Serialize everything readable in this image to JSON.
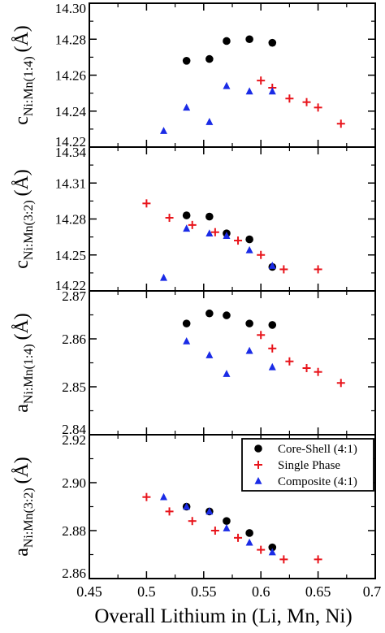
{
  "x_axis": {
    "label": "Overall Lithium in (Li, Mn, Ni)",
    "range": [
      0.45,
      0.7
    ],
    "ticks": [
      "0.45",
      "0.5",
      "0.55",
      "0.6",
      "0.65",
      "0.7"
    ]
  },
  "chart_data": [
    {
      "type": "scatter",
      "ylabel_main": "c",
      "ylabel_sub": "Ni:Mn(1:4)",
      "ylabel_unit": "(Å)",
      "ylim": [
        14.22,
        14.3
      ],
      "yticks": [
        "14.22",
        "14.24",
        "14.26",
        "14.28",
        "14.30"
      ],
      "series": [
        {
          "name": "Core-Shell (4:1)",
          "x": [
            0.535,
            0.555,
            0.57,
            0.59,
            0.61
          ],
          "y": [
            14.268,
            14.269,
            14.279,
            14.28,
            14.278
          ]
        },
        {
          "name": "Single Phase",
          "x": [
            0.6,
            0.61,
            0.625,
            0.64,
            0.65,
            0.67
          ],
          "y": [
            14.257,
            14.253,
            14.247,
            14.245,
            14.242,
            14.233
          ]
        },
        {
          "name": "Composite (4:1)",
          "x": [
            0.515,
            0.535,
            0.555,
            0.57,
            0.59,
            0.61
          ],
          "y": [
            14.229,
            14.242,
            14.234,
            14.254,
            14.251,
            14.251
          ]
        }
      ]
    },
    {
      "type": "scatter",
      "ylabel_main": "c",
      "ylabel_sub": "Ni:Mn(3:2)",
      "ylabel_unit": "(Å)",
      "ylim": [
        14.22,
        14.34
      ],
      "yticks": [
        "14.22",
        "14.25",
        "14.28",
        "14.31",
        "14.34"
      ],
      "series": [
        {
          "name": "Core-Shell (4:1)",
          "x": [
            0.535,
            0.555,
            0.57,
            0.59,
            0.61
          ],
          "y": [
            14.283,
            14.282,
            14.268,
            14.263,
            14.24
          ]
        },
        {
          "name": "Single Phase",
          "x": [
            0.5,
            0.52,
            0.54,
            0.56,
            0.58,
            0.6,
            0.62,
            0.65
          ],
          "y": [
            14.293,
            14.281,
            14.275,
            14.269,
            14.262,
            14.25,
            14.238,
            14.238
          ]
        },
        {
          "name": "Composite (4:1)",
          "x": [
            0.515,
            0.535,
            0.555,
            0.57,
            0.59,
            0.61
          ],
          "y": [
            14.231,
            14.272,
            14.268,
            14.266,
            14.254,
            14.241
          ]
        }
      ]
    },
    {
      "type": "scatter",
      "ylabel_main": "a",
      "ylabel_sub": "Ni:Mn(1:4)",
      "ylabel_unit": "(Å)",
      "ylim": [
        2.84,
        2.87
      ],
      "yticks": [
        "2.84",
        "2.85",
        "2.86",
        "2.87"
      ],
      "series": [
        {
          "name": "Core-Shell (4:1)",
          "x": [
            0.535,
            0.555,
            0.57,
            0.59,
            0.61
          ],
          "y": [
            2.8632,
            2.8653,
            2.8649,
            2.8632,
            2.8629
          ]
        },
        {
          "name": "Single Phase",
          "x": [
            0.6,
            0.61,
            0.625,
            0.64,
            0.65,
            0.67
          ],
          "y": [
            2.8608,
            2.858,
            2.8553,
            2.8539,
            2.8531,
            2.8508
          ]
        },
        {
          "name": "Composite (4:1)",
          "x": [
            0.535,
            0.555,
            0.57,
            0.59,
            0.61
          ],
          "y": [
            2.8595,
            2.8566,
            2.8527,
            2.8575,
            2.8541
          ]
        }
      ]
    },
    {
      "type": "scatter",
      "ylabel_main": "a",
      "ylabel_sub": "Ni:Mn(3:2)",
      "ylabel_unit": "(Å)",
      "ylim": [
        2.86,
        2.92
      ],
      "yticks": [
        "2.86",
        "2.88",
        "2.90",
        "2.92"
      ],
      "legend": "top-right",
      "series": [
        {
          "name": "Core-Shell (4:1)",
          "x": [
            0.535,
            0.555,
            0.57,
            0.59,
            0.61
          ],
          "y": [
            2.89,
            2.888,
            2.884,
            2.879,
            2.873
          ]
        },
        {
          "name": "Single Phase",
          "x": [
            0.5,
            0.52,
            0.54,
            0.56,
            0.58,
            0.6,
            0.62,
            0.65
          ],
          "y": [
            2.894,
            2.888,
            2.884,
            2.88,
            2.877,
            2.872,
            2.868,
            2.868
          ]
        },
        {
          "name": "Composite (4:1)",
          "x": [
            0.515,
            0.535,
            0.555,
            0.57,
            0.59,
            0.61
          ],
          "y": [
            2.894,
            2.89,
            2.888,
            2.881,
            2.875,
            2.871
          ]
        }
      ]
    }
  ],
  "legend": {
    "items": [
      {
        "label": "Core-Shell (4:1)",
        "marker": "circle"
      },
      {
        "label": "Single Phase",
        "marker": "plus"
      },
      {
        "label": "Composite (4:1)",
        "marker": "triangle"
      }
    ]
  },
  "colors": {
    "core_shell": "#000000",
    "single_phase": "#e8141b",
    "composite": "#1a2be6"
  }
}
